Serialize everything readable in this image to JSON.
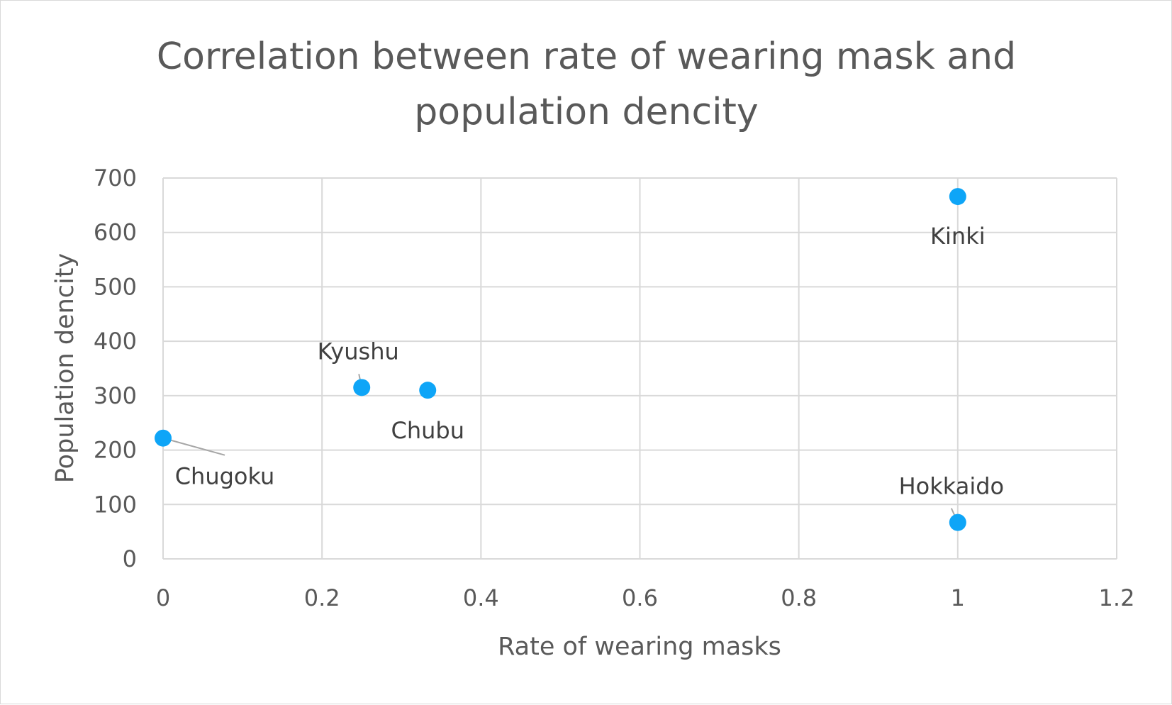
{
  "chart_data": {
    "type": "scatter",
    "title": [
      "Correlation between rate of wearing mask and",
      "population dencity"
    ],
    "xlabel": "Rate of wearing masks",
    "ylabel": "Population dencity",
    "xlim": [
      0,
      1.2
    ],
    "ylim": [
      0,
      700
    ],
    "x_ticks": [
      "0",
      "0.2",
      "0.4",
      "0.6",
      "0.8",
      "1",
      "1.2"
    ],
    "y_ticks": [
      "0",
      "100",
      "200",
      "300",
      "400",
      "500",
      "600",
      "700"
    ],
    "grid": true,
    "legend": "none",
    "marker_color": "#0ea5f7",
    "points": [
      {
        "label": "Chugoku",
        "x": 0,
        "y": 222
      },
      {
        "label": "Kyushu",
        "x": 0.25,
        "y": 315
      },
      {
        "label": "Chubu",
        "x": 0.333,
        "y": 310
      },
      {
        "label": "Kinki",
        "x": 1,
        "y": 666
      },
      {
        "label": "Hokkaido",
        "x": 1,
        "y": 67
      }
    ]
  }
}
